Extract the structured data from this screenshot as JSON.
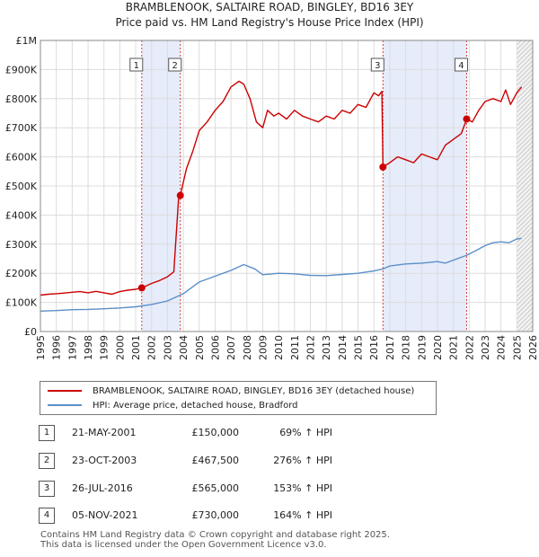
{
  "chart_data": {
    "type": "line",
    "title": "BRAMBLENOOK, SALTAIRE ROAD, BINGLEY, BD16 3EY",
    "subtitle": "Price paid vs. HM Land Registry's House Price Index (HPI)",
    "x_range": [
      1995,
      2026
    ],
    "y_range": [
      0,
      1000000
    ],
    "y_ticks": [
      {
        "value": 0,
        "label": "£0"
      },
      {
        "value": 100000,
        "label": "£100K"
      },
      {
        "value": 200000,
        "label": "£200K"
      },
      {
        "value": 300000,
        "label": "£300K"
      },
      {
        "value": 400000,
        "label": "£400K"
      },
      {
        "value": 500000,
        "label": "£500K"
      },
      {
        "value": 600000,
        "label": "£600K"
      },
      {
        "value": 700000,
        "label": "£700K"
      },
      {
        "value": 800000,
        "label": "£800K"
      },
      {
        "value": 900000,
        "label": "£900K"
      },
      {
        "value": 1000000,
        "label": "£1M"
      }
    ],
    "x_ticks": [
      "1995",
      "1996",
      "1997",
      "1998",
      "1999",
      "2000",
      "2001",
      "2002",
      "2003",
      "2004",
      "2005",
      "2006",
      "2007",
      "2008",
      "2009",
      "2010",
      "2011",
      "2012",
      "2013",
      "2014",
      "2015",
      "2016",
      "2017",
      "2018",
      "2019",
      "2020",
      "2021",
      "2022",
      "2023",
      "2024",
      "2025",
      "2026"
    ],
    "grid": true,
    "shaded_periods": [
      [
        2001.38,
        2003.81
      ],
      [
        2016.57,
        2021.84
      ]
    ],
    "forecast_start": 2025.0,
    "series": [
      {
        "name": "BRAMBLENOOK, SALTAIRE ROAD, BINGLEY, BD16 3EY (detached house)",
        "color": "#cc0000",
        "x": [
          1995.0,
          1995.5,
          1996.0,
          1996.5,
          1997.0,
          1997.5,
          1998.0,
          1998.5,
          1999.0,
          1999.5,
          2000.0,
          2000.5,
          2001.0,
          2001.38,
          2001.6,
          2002.0,
          2002.5,
          2003.0,
          2003.4,
          2003.7,
          2003.81,
          2004.2,
          2004.6,
          2005.0,
          2005.5,
          2006.0,
          2006.5,
          2007.0,
          2007.5,
          2007.8,
          2008.2,
          2008.6,
          2009.0,
          2009.3,
          2009.7,
          2010.0,
          2010.5,
          2011.0,
          2011.5,
          2012.0,
          2012.5,
          2013.0,
          2013.5,
          2014.0,
          2014.5,
          2015.0,
          2015.5,
          2016.0,
          2016.3,
          2016.5,
          2016.57,
          2017.0,
          2017.5,
          2018.0,
          2018.5,
          2019.0,
          2019.5,
          2020.0,
          2020.5,
          2021.0,
          2021.5,
          2021.84,
          2022.2,
          2022.6,
          2023.0,
          2023.5,
          2024.0,
          2024.3,
          2024.6,
          2025.0,
          2025.3
        ],
        "y": [
          125000,
          128000,
          130000,
          132000,
          135000,
          137000,
          133000,
          138000,
          133000,
          128000,
          137000,
          142000,
          145000,
          150000,
          155000,
          165000,
          175000,
          188000,
          205000,
          458000,
          467500,
          560000,
          620000,
          690000,
          720000,
          760000,
          790000,
          840000,
          860000,
          850000,
          800000,
          720000,
          700000,
          760000,
          740000,
          750000,
          730000,
          760000,
          740000,
          730000,
          720000,
          740000,
          730000,
          760000,
          750000,
          780000,
          770000,
          820000,
          810000,
          825000,
          565000,
          580000,
          600000,
          590000,
          580000,
          610000,
          600000,
          590000,
          640000,
          660000,
          680000,
          730000,
          720000,
          760000,
          790000,
          800000,
          790000,
          830000,
          780000,
          820000,
          840000
        ]
      },
      {
        "name": "HPI: Average price, detached house, Bradford",
        "color": "#5b8fc9",
        "x": [
          1995.0,
          1996.0,
          1997.0,
          1998.0,
          1999.0,
          2000.0,
          2001.0,
          2002.0,
          2003.0,
          2004.0,
          2005.0,
          2006.0,
          2007.0,
          2007.8,
          2008.5,
          2009.0,
          2010.0,
          2011.0,
          2012.0,
          2013.0,
          2014.0,
          2015.0,
          2016.0,
          2016.57,
          2017.0,
          2018.0,
          2019.0,
          2020.0,
          2020.5,
          2021.0,
          2021.84,
          2022.5,
          2023.0,
          2023.5,
          2024.0,
          2024.5,
          2025.0,
          2025.3
        ],
        "y": [
          70000,
          72000,
          75000,
          76000,
          78000,
          81000,
          85000,
          93000,
          105000,
          130000,
          170000,
          190000,
          210000,
          230000,
          215000,
          195000,
          200000,
          198000,
          193000,
          192000,
          196000,
          200000,
          208000,
          215000,
          225000,
          232000,
          235000,
          240000,
          235000,
          245000,
          262000,
          280000,
          295000,
          305000,
          308000,
          305000,
          318000,
          320000
        ]
      }
    ],
    "markers": [
      {
        "id": "1",
        "x": 2001.38,
        "y": 150000
      },
      {
        "id": "2",
        "x": 2003.81,
        "y": 467500
      },
      {
        "id": "3",
        "x": 2016.57,
        "y": 565000
      },
      {
        "id": "4",
        "x": 2021.84,
        "y": 730000
      }
    ]
  },
  "legend": {
    "property_label": "BRAMBLENOOK, SALTAIRE ROAD, BINGLEY, BD16 3EY (detached house)",
    "hpi_label": "HPI: Average price, detached house, Bradford"
  },
  "sales": [
    {
      "num": "1",
      "date": "21-MAY-2001",
      "price": "£150,000",
      "hpi": "69% ↑ HPI"
    },
    {
      "num": "2",
      "date": "23-OCT-2003",
      "price": "£467,500",
      "hpi": "276% ↑ HPI"
    },
    {
      "num": "3",
      "date": "26-JUL-2016",
      "price": "£565,000",
      "hpi": "153% ↑ HPI"
    },
    {
      "num": "4",
      "date": "05-NOV-2021",
      "price": "£730,000",
      "hpi": "164% ↑ HPI"
    }
  ],
  "footer": {
    "line1": "Contains HM Land Registry data © Crown copyright and database right 2025.",
    "line2": "This data is licensed under the Open Government Licence v3.0."
  }
}
